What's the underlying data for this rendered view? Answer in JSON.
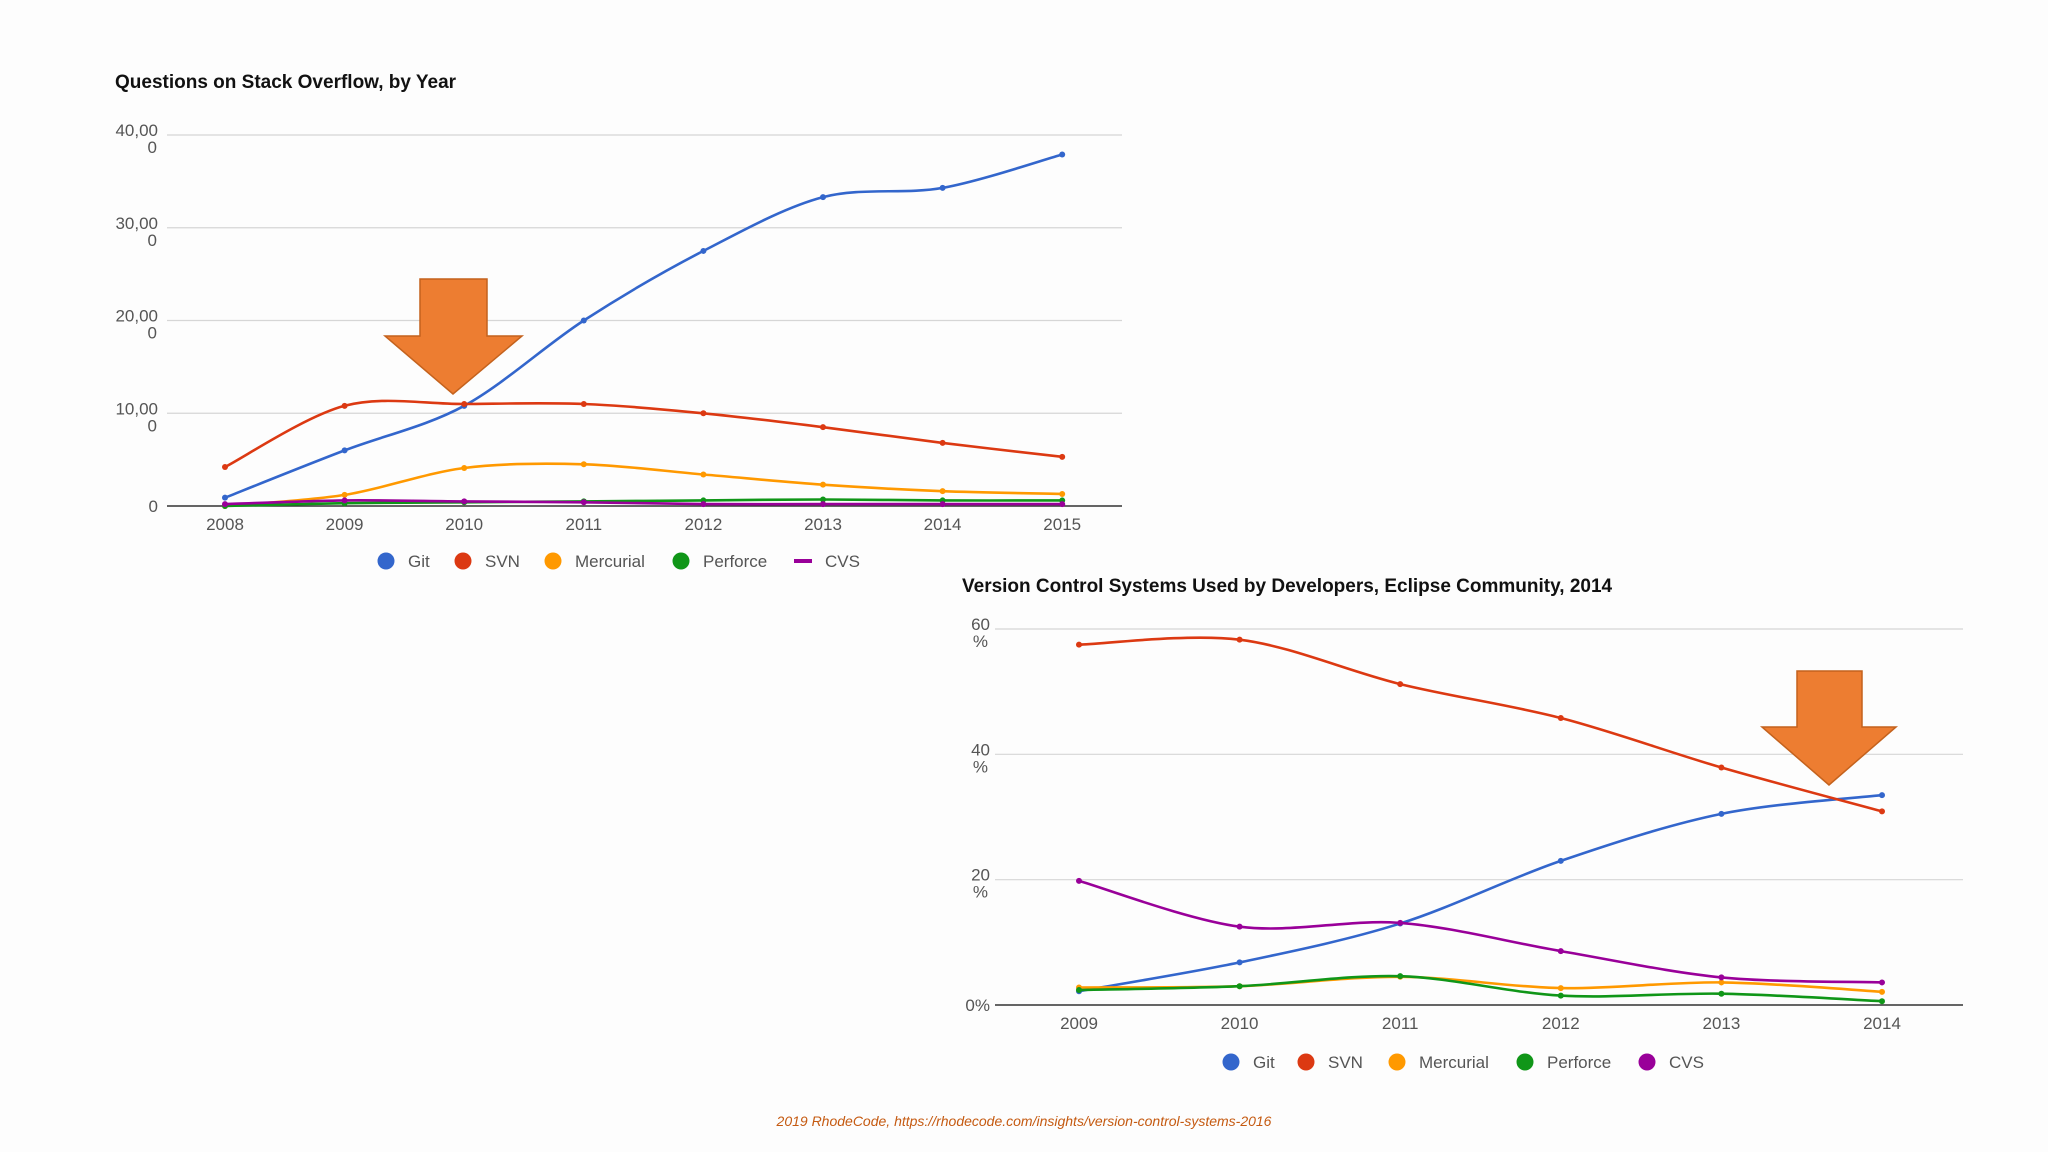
{
  "chart_data": [
    {
      "type": "line",
      "title": "Questions on Stack Overflow, by Year",
      "x": [
        "2008",
        "2009",
        "2010",
        "2011",
        "2012",
        "2013",
        "2014",
        "2015"
      ],
      "y_ticks": [
        {
          "line1": "0",
          "line2": ""
        },
        {
          "line1": "10,00",
          "line2": "0"
        },
        {
          "line1": "20,00",
          "line2": "0"
        },
        {
          "line1": "30,00",
          "line2": "0"
        },
        {
          "line1": "40,00",
          "line2": "0"
        }
      ],
      "ylim": [
        0,
        40000
      ],
      "series": [
        {
          "name": "Git",
          "color": "#3366cc",
          "marker": "circle",
          "values": [
            900,
            6000,
            10800,
            20000,
            27500,
            33300,
            34300,
            37900
          ]
        },
        {
          "name": "SVN",
          "color": "#dc3912",
          "marker": "circle",
          "values": [
            4200,
            10800,
            11000,
            11000,
            10000,
            8500,
            6800,
            5300
          ]
        },
        {
          "name": "Mercurial",
          "color": "#ff9900",
          "marker": "circle",
          "values": [
            0,
            1200,
            4100,
            4500,
            3400,
            2300,
            1600,
            1300
          ]
        },
        {
          "name": "Perforce",
          "color": "#109618",
          "marker": "circle",
          "values": [
            0,
            300,
            400,
            500,
            600,
            700,
            600,
            600
          ]
        },
        {
          "name": "CVS",
          "color": "#990099",
          "marker": "line",
          "values": [
            200,
            600,
            500,
            400,
            200,
            200,
            200,
            200
          ]
        }
      ]
    },
    {
      "type": "line",
      "title": "Version Control Systems Used by Developers, Eclipse Community, 2014",
      "x": [
        "2009",
        "2010",
        "2011",
        "2012",
        "2013",
        "2014"
      ],
      "y_ticks": [
        {
          "line1": "0%",
          "line2": ""
        },
        {
          "line1": "20",
          "line2": "%"
        },
        {
          "line1": "40",
          "line2": "%"
        },
        {
          "line1": "60",
          "line2": "%"
        }
      ],
      "ylim": [
        0,
        60
      ],
      "series": [
        {
          "name": "Git",
          "color": "#3366cc",
          "marker": "circle",
          "values": [
            2.2,
            6.8,
            13,
            23,
            30.5,
            33.5
          ]
        },
        {
          "name": "SVN",
          "color": "#dc3912",
          "marker": "circle",
          "values": [
            57.5,
            58.3,
            51.2,
            45.8,
            37.9,
            30.9
          ]
        },
        {
          "name": "Mercurial",
          "color": "#ff9900",
          "marker": "circle",
          "values": [
            2.8,
            3.0,
            4.5,
            2.7,
            3.6,
            2.1
          ]
        },
        {
          "name": "Perforce",
          "color": "#109618",
          "marker": "circle",
          "values": [
            2.4,
            3.0,
            4.6,
            1.5,
            1.8,
            0.6
          ]
        },
        {
          "name": "CVS",
          "color": "#990099",
          "marker": "circle",
          "values": [
            19.8,
            12.5,
            13.1,
            8.6,
            4.4,
            3.6
          ]
        }
      ]
    }
  ],
  "footer": "2019 RhodeCode, https://rhodecode.com/insights/version-control-systems-2016"
}
